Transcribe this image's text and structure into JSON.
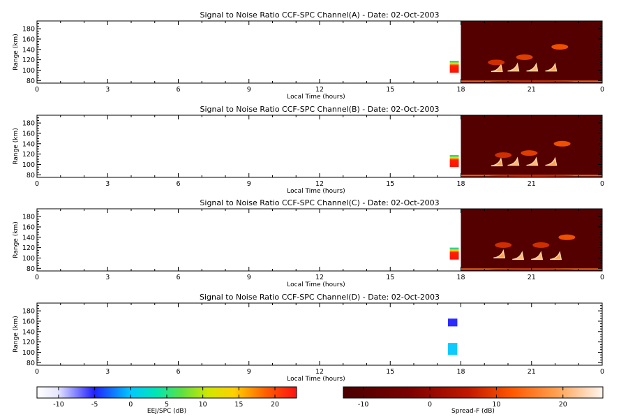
{
  "chart_data": [
    {
      "type": "heatmap",
      "title": "Signal to Noise Ratio CCF-SPC Channel(A) - Date: 02-Oct-2003",
      "xlabel": "Local Time (hours)",
      "ylabel": "Range (km)",
      "xlim": [
        0,
        24
      ],
      "ylim": [
        75,
        195
      ],
      "xticks": [
        "0",
        "3",
        "6",
        "9",
        "12",
        "15",
        "18",
        "21",
        "0"
      ],
      "yticks": [
        "80",
        "100",
        "120",
        "140",
        "160",
        "180"
      ],
      "eej_block": {
        "x": [
          17.5,
          18.0
        ],
        "y": [
          95,
          118
        ],
        "value_db": 18
      },
      "spread_f_block": {
        "x": [
          18.0,
          24.0
        ],
        "y": [
          75,
          195
        ],
        "background_db": -11
      },
      "features": [
        {
          "x": 19.7,
          "y": 100,
          "value_db": 18
        },
        {
          "x": 20.4,
          "y": 101,
          "value_db": 20
        },
        {
          "x": 21.2,
          "y": 101,
          "value_db": 20
        },
        {
          "x": 22.0,
          "y": 101,
          "value_db": 18
        },
        {
          "x": 19.5,
          "y": 115,
          "value_db": 8
        },
        {
          "x": 20.7,
          "y": 125,
          "value_db": 10
        },
        {
          "x": 22.2,
          "y": 145,
          "value_db": 12
        },
        {
          "x": 21.0,
          "y": 78,
          "value_db": 6
        }
      ]
    },
    {
      "type": "heatmap",
      "title": "Signal to Noise Ratio CCF-SPC Channel(B) - Date: 02-Oct-2003",
      "xlabel": "Local Time (hours)",
      "ylabel": "Range (km)",
      "xlim": [
        0,
        24
      ],
      "ylim": [
        75,
        195
      ],
      "xticks": [
        "0",
        "3",
        "6",
        "9",
        "12",
        "15",
        "18",
        "21",
        "0"
      ],
      "yticks": [
        "80",
        "100",
        "120",
        "140",
        "160",
        "180"
      ],
      "eej_block": {
        "x": [
          17.5,
          18.0
        ],
        "y": [
          95,
          118
        ],
        "value_db": 18
      },
      "spread_f_block": {
        "x": [
          18.0,
          24.0
        ],
        "y": [
          75,
          195
        ],
        "background_db": -11
      },
      "features": [
        {
          "x": 19.7,
          "y": 100,
          "value_db": 18
        },
        {
          "x": 20.4,
          "y": 101,
          "value_db": 20
        },
        {
          "x": 21.2,
          "y": 101,
          "value_db": 20
        },
        {
          "x": 22.0,
          "y": 101,
          "value_db": 18
        },
        {
          "x": 19.8,
          "y": 118,
          "value_db": 8
        },
        {
          "x": 20.9,
          "y": 122,
          "value_db": 10
        },
        {
          "x": 22.3,
          "y": 140,
          "value_db": 12
        },
        {
          "x": 21.0,
          "y": 78,
          "value_db": 6
        }
      ]
    },
    {
      "type": "heatmap",
      "title": "Signal to Noise Ratio CCF-SPC Channel(C) - Date: 02-Oct-2003",
      "xlabel": "Local Time (hours)",
      "ylabel": "Range (km)",
      "xlim": [
        0,
        24
      ],
      "ylim": [
        75,
        195
      ],
      "xticks": [
        "0",
        "3",
        "6",
        "9",
        "12",
        "15",
        "18",
        "21",
        "0"
      ],
      "yticks": [
        "80",
        "100",
        "120",
        "140",
        "160",
        "180"
      ],
      "eej_block": {
        "x": [
          17.5,
          18.0
        ],
        "y": [
          97,
          120
        ],
        "value_db": 18
      },
      "spread_f_block": {
        "x": [
          18.0,
          24.0
        ],
        "y": [
          75,
          195
        ],
        "background_db": -11
      },
      "features": [
        {
          "x": 19.8,
          "y": 103,
          "value_db": 18
        },
        {
          "x": 20.6,
          "y": 100,
          "value_db": 20
        },
        {
          "x": 21.4,
          "y": 100,
          "value_db": 20
        },
        {
          "x": 22.2,
          "y": 100,
          "value_db": 18
        },
        {
          "x": 19.8,
          "y": 125,
          "value_db": 8
        },
        {
          "x": 21.4,
          "y": 125,
          "value_db": 8
        },
        {
          "x": 22.5,
          "y": 140,
          "value_db": 12
        },
        {
          "x": 21.0,
          "y": 78,
          "value_db": 6
        }
      ]
    },
    {
      "type": "heatmap",
      "title": "Signal to Noise Ratio CCF-SPC Channel(D) - Date: 02-Oct-2003",
      "xlabel": "Local Time (hours)",
      "ylabel": "Range (km)",
      "xlim": [
        0,
        24
      ],
      "ylim": [
        75,
        195
      ],
      "xticks": [
        "0",
        "3",
        "6",
        "9",
        "12",
        "15",
        "18",
        "21",
        "0"
      ],
      "yticks": [
        "80",
        "100",
        "120",
        "140",
        "160",
        "180"
      ],
      "blobs": [
        {
          "x": [
            17.45,
            17.85
          ],
          "y": [
            95,
            118
          ],
          "value_db": 0
        },
        {
          "x": [
            17.45,
            17.85
          ],
          "y": [
            150,
            165
          ],
          "value_db": -5
        }
      ]
    }
  ],
  "colorbars": [
    {
      "label": "EEJ/SPC (dB)",
      "ticks": [
        "-10",
        "-5",
        "0",
        "5",
        "10",
        "15",
        "20"
      ],
      "range": [
        -13,
        23
      ]
    },
    {
      "label": "Spread-F (dB)",
      "ticks": [
        "-10",
        "0",
        "10",
        "20"
      ],
      "range": [
        -13,
        26
      ]
    }
  ]
}
